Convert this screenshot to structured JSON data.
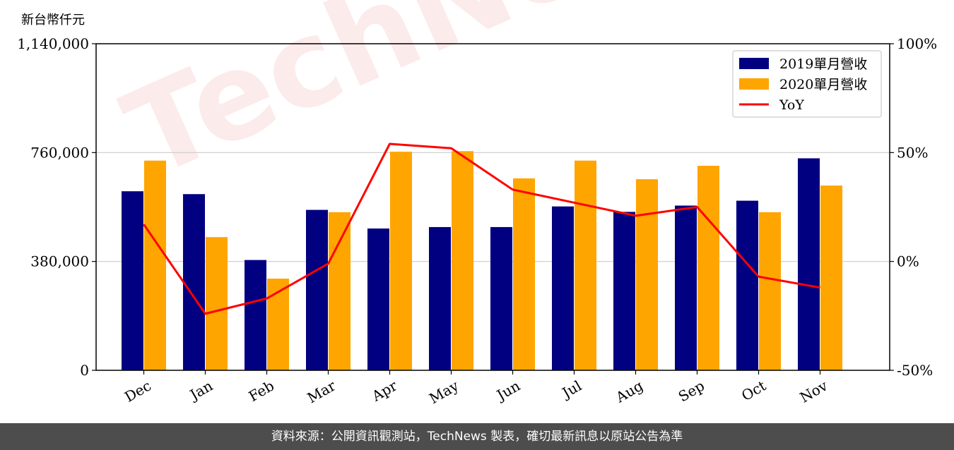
{
  "watermark": "TechNews",
  "footer": {
    "source_text": "資料來源：公開資訊觀測站，TechNews 製表，確切最新訊息以原站公告為準"
  },
  "colors": {
    "series2019": "#000080",
    "series2020": "#FFA500",
    "yoy": "#FF0000",
    "grid": "#cccccc",
    "footer_bg": "#4d4d4d"
  },
  "chart_data": {
    "type": "bar",
    "ylabel": "新台幣仟元",
    "categories": [
      "Dec",
      "Jan",
      "Feb",
      "Mar",
      "Apr",
      "May",
      "Jun",
      "Jul",
      "Aug",
      "Sep",
      "Oct",
      "Nov"
    ],
    "ylim": [
      0,
      1140000
    ],
    "y_ticks": [
      0,
      380000,
      760000,
      1140000
    ],
    "y_tick_labels": [
      "0",
      "380,000",
      "760,000",
      "1,140,000"
    ],
    "y2lim": [
      -50,
      100
    ],
    "y2_ticks": [
      -50,
      0,
      50,
      100
    ],
    "y2_tick_labels": [
      "-50%",
      "0%",
      "50%",
      "100%"
    ],
    "grid": true,
    "legend_position": "top-right",
    "series": [
      {
        "name": "2019單月營收",
        "type": "bar",
        "axis": "left",
        "values": [
          625000,
          615000,
          385000,
          560000,
          495000,
          500000,
          500000,
          572000,
          553000,
          575000,
          592000,
          740000
        ]
      },
      {
        "name": "2020單月營收",
        "type": "bar",
        "axis": "left",
        "values": [
          732000,
          465000,
          320000,
          552000,
          763000,
          765000,
          670000,
          732000,
          667000,
          714000,
          552000,
          645000
        ]
      },
      {
        "name": "YoY",
        "type": "line",
        "axis": "right",
        "values": [
          17,
          -24,
          -17,
          -1,
          54,
          52,
          33,
          27,
          21,
          25,
          -7,
          -12
        ]
      }
    ]
  }
}
